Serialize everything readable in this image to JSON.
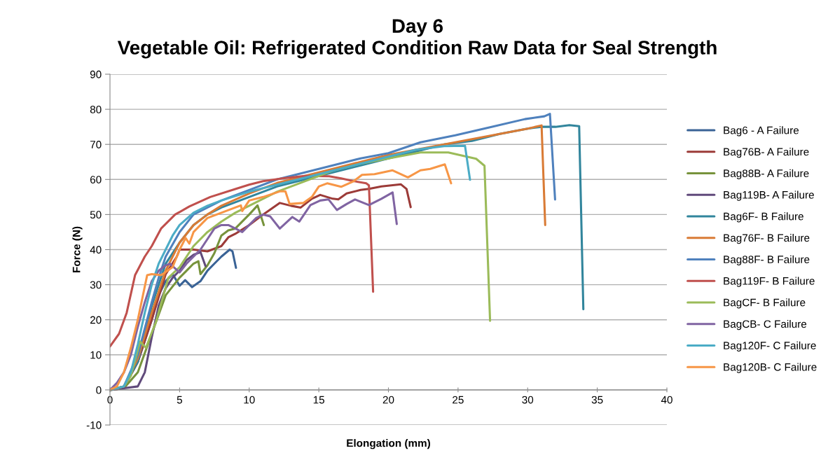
{
  "chart_data": {
    "type": "line",
    "title": "Day 6\nVegetable Oil: Refrigerated Condition Raw Data for Seal Strength",
    "xlabel": "Elongation (mm)",
    "ylabel": "Force (N)",
    "xlim": [
      0,
      40
    ],
    "xticks": [
      0,
      5,
      10,
      15,
      20,
      25,
      30,
      35,
      40
    ],
    "ylim": [
      -10,
      90
    ],
    "yticks": [
      -10,
      0,
      10,
      20,
      30,
      40,
      50,
      60,
      70,
      80,
      90
    ],
    "grid": "y",
    "legend": "right",
    "line_style": "solid",
    "series": [
      {
        "name": "Bag6 - A Failure",
        "color": "#3a6396",
        "x": [
          0,
          1,
          2,
          3,
          3.5,
          4,
          4.5,
          5,
          5.4,
          5.9,
          6.5,
          7,
          7.5,
          8,
          8.6,
          8.8,
          9.05
        ],
        "values": [
          0,
          1,
          8,
          20,
          27,
          31,
          33,
          29.7,
          31.3,
          29.3,
          31,
          34,
          36,
          38,
          40,
          39.5,
          34.8
        ]
      },
      {
        "name": "Bag76B- A Failure",
        "color": "#9c3b38",
        "x": [
          0,
          1,
          2,
          3,
          4,
          4.8,
          5,
          6,
          7,
          8,
          8.5,
          9,
          10,
          11,
          12.2,
          13,
          13.7,
          14.5,
          15.1,
          16,
          16.4,
          17,
          18,
          18.6,
          19.5,
          20.9,
          21.3,
          21.6
        ],
        "values": [
          0,
          0.5,
          8,
          20,
          33,
          38,
          40,
          40,
          39.5,
          41,
          43.5,
          44.5,
          47,
          50,
          53.3,
          52.5,
          52,
          54.5,
          55.6,
          54.5,
          54.3,
          56,
          57,
          57.3,
          58,
          58.6,
          57.3,
          52.1
        ]
      },
      {
        "name": "Bag88B- A Failure",
        "color": "#77933c",
        "x": [
          0,
          1,
          2,
          3,
          4,
          5,
          5.5,
          6,
          6.35,
          6.5,
          7,
          7.5,
          8,
          8.5,
          9,
          9.5,
          10,
          10.6,
          11.05
        ],
        "values": [
          0,
          0.5,
          5,
          16,
          27,
          32,
          34,
          36,
          36.7,
          33,
          35.5,
          39,
          44,
          45.5,
          46,
          48,
          50,
          52.6,
          47
        ]
      },
      {
        "name": "Bag119B- A Failure",
        "color": "#604a7b",
        "x": [
          0,
          1,
          2,
          2.5,
          3,
          3.5,
          4,
          4.5,
          5,
          5.5,
          6,
          6.5,
          6.86
        ],
        "values": [
          0,
          0.5,
          1,
          5,
          15,
          24,
          29,
          32,
          34,
          37,
          38.5,
          39.3,
          35.3
        ]
      },
      {
        "name": "Bag6F- B Failure",
        "color": "#31859c",
        "x": [
          0,
          1,
          2,
          2.5,
          3,
          3.5,
          4,
          5,
          6,
          7,
          8,
          10,
          12,
          14,
          16,
          18,
          20,
          22,
          24,
          26,
          28,
          30,
          31,
          32,
          33,
          33.7,
          34.0
        ],
        "values": [
          0,
          1,
          8,
          16,
          24,
          30,
          36,
          42,
          47,
          50,
          52,
          55,
          58,
          60,
          62,
          64,
          66,
          68,
          70,
          71,
          73,
          74.5,
          75,
          75,
          75.5,
          75.2,
          23
        ]
      },
      {
        "name": "Bag76F- B Failure",
        "color": "#d97b35",
        "x": [
          0,
          1,
          2,
          3,
          4,
          5,
          6,
          7,
          8,
          10,
          12,
          14,
          16,
          18,
          20,
          22,
          24,
          26,
          28,
          30,
          31.0,
          31.26
        ],
        "values": [
          0,
          1,
          9,
          22,
          34,
          42,
          47,
          50,
          52.5,
          56,
          59,
          61,
          63,
          65,
          67,
          68.5,
          70,
          71.5,
          73,
          74.5,
          75.4,
          47
        ]
      },
      {
        "name": "Bag88F- B Failure",
        "color": "#4f81bd",
        "x": [
          0,
          1,
          2,
          3,
          3.5,
          4,
          5,
          6,
          7,
          8,
          10,
          12,
          14,
          16,
          18,
          20,
          22.3,
          24.8,
          27.3,
          29.8,
          31.2,
          31.6,
          31.97
        ],
        "values": [
          0,
          1,
          10,
          25,
          32,
          38,
          45,
          50,
          52,
          54,
          57,
          60,
          62,
          64,
          66,
          67.5,
          70.6,
          72.6,
          74.9,
          77.2,
          78,
          78.7,
          54.3
        ]
      },
      {
        "name": "Bag119F- B Failure",
        "color": "#c0504d",
        "x": [
          0,
          0.65,
          1.2,
          1.8,
          2.5,
          3,
          3.67,
          4.68,
          5.7,
          7.2,
          9.04,
          10,
          11,
          12.4,
          14,
          15.75,
          16.6,
          17.4,
          18.4,
          18.6,
          18.9
        ],
        "values": [
          12.4,
          16,
          22,
          32.7,
          38,
          41,
          46,
          50,
          52.3,
          55,
          57.3,
          58.5,
          59.5,
          60.3,
          61,
          60.9,
          60.3,
          59.6,
          58.9,
          58.3,
          28
        ]
      },
      {
        "name": "BagCF- B Failure",
        "color": "#9bbb59",
        "x": [
          0,
          1,
          1.5,
          2.16,
          2.58,
          3.3,
          4.2,
          5,
          5.5,
          6,
          7,
          8,
          9,
          10,
          11,
          12,
          13,
          14,
          15,
          16,
          18,
          20,
          22.3,
          24.3,
          26.3,
          26.9,
          27.3
        ],
        "values": [
          0,
          1,
          4,
          13.8,
          12,
          19.4,
          32,
          35,
          38,
          41,
          45,
          48,
          50.5,
          52.5,
          54.5,
          56.5,
          58,
          59.5,
          61,
          62.5,
          64.5,
          66,
          67.7,
          67.7,
          65.9,
          63.9,
          19.7
        ]
      },
      {
        "name": "BagCB- C Failure",
        "color": "#8064a2",
        "x": [
          0,
          0.5,
          1,
          1.5,
          2,
          2.5,
          3,
          3.5,
          4,
          4.3,
          5,
          5.5,
          6,
          6.5,
          7,
          7.5,
          8,
          8.5,
          9,
          9.5,
          10,
          10.5,
          11,
          11.5,
          12.2,
          13.1,
          13.6,
          14.4,
          15.1,
          15.7,
          16.3,
          17,
          17.6,
          18.6,
          19.5,
          20.3,
          20.6
        ],
        "values": [
          0,
          2,
          5,
          10,
          18,
          25,
          31,
          34,
          35.5,
          36,
          33.5,
          36,
          38,
          40,
          43,
          46,
          47,
          47,
          46,
          45,
          47,
          49,
          50,
          49.5,
          46,
          49.3,
          48,
          52.7,
          54,
          54.3,
          51.3,
          53,
          54.3,
          52.7,
          54.5,
          56.3,
          47.3
        ]
      },
      {
        "name": "Bag120F- C Failure",
        "color": "#4bacc6",
        "x": [
          0,
          1,
          1.5,
          2,
          2.5,
          3,
          3.5,
          4,
          4.5,
          5,
          6,
          7,
          8,
          10,
          12,
          14,
          16,
          18,
          20,
          22,
          24,
          25.5,
          25.86
        ],
        "values": [
          0,
          1,
          5,
          13,
          22,
          30,
          36,
          40,
          44,
          47,
          50.5,
          52.5,
          54,
          56.5,
          58.5,
          60.5,
          62.5,
          64.5,
          66.5,
          68.5,
          69.5,
          69.6,
          59.9
        ]
      },
      {
        "name": "Bag120B- C Failure",
        "color": "#f79646",
        "x": [
          0,
          0.5,
          1,
          1.5,
          2,
          2.67,
          3,
          3.67,
          4.5,
          5,
          5.43,
          5.7,
          6,
          6.5,
          7,
          8,
          9.4,
          9.5,
          10,
          11,
          12.2,
          12.6,
          12.9,
          13.9,
          14.5,
          15,
          15.6,
          16.6,
          17.5,
          18.1,
          19,
          20.3,
          21.4,
          22.3,
          23,
          24.05,
          24.5
        ],
        "values": [
          0,
          1,
          5,
          12,
          20,
          32.7,
          33,
          32.7,
          35,
          40,
          43.3,
          41.7,
          45,
          47,
          49,
          50.5,
          52.6,
          51,
          54,
          55,
          56.6,
          56.6,
          53,
          53.3,
          55,
          58,
          58.9,
          57.9,
          59.5,
          61.3,
          61.5,
          62.6,
          60.6,
          62.6,
          63,
          64.3,
          58.9
        ]
      }
    ]
  }
}
